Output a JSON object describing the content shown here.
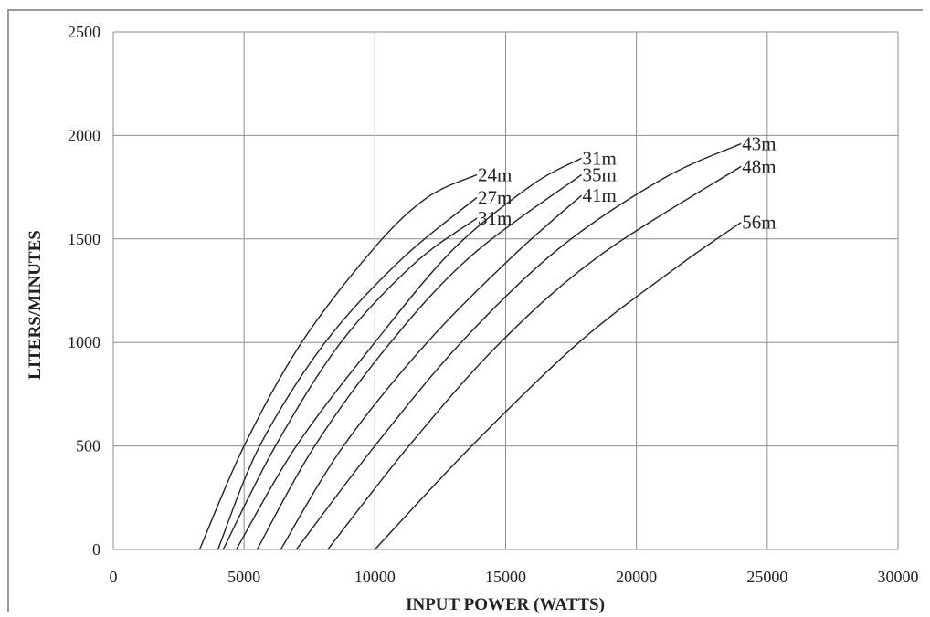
{
  "chart_data": {
    "type": "line",
    "title": "",
    "xlabel": "INPUT POWER (WATTS)",
    "ylabel": "LITERS/MINUTES",
    "xlim": [
      0,
      30000
    ],
    "ylim": [
      0,
      2500
    ],
    "x_ticks": [
      0,
      5000,
      10000,
      15000,
      20000,
      25000,
      30000
    ],
    "y_ticks": [
      0,
      500,
      1000,
      1500,
      2000,
      2500
    ],
    "grid": true,
    "legend": "none",
    "series": [
      {
        "name": "24m",
        "points": [
          [
            3300,
            0
          ],
          [
            5000,
            500
          ],
          [
            7200,
            1000
          ],
          [
            10000,
            1460
          ],
          [
            12000,
            1700
          ],
          [
            13900,
            1810
          ]
        ]
      },
      {
        "name": "27m",
        "points": [
          [
            4000,
            0
          ],
          [
            5600,
            500
          ],
          [
            8100,
            1000
          ],
          [
            11000,
            1400
          ],
          [
            13900,
            1700
          ]
        ]
      },
      {
        "name": "31m",
        "points": [
          [
            4200,
            0
          ],
          [
            6200,
            500
          ],
          [
            8700,
            1000
          ],
          [
            11500,
            1380
          ],
          [
            13900,
            1600
          ]
        ]
      },
      {
        "name": "31m",
        "points": [
          [
            4700,
            0
          ],
          [
            7000,
            500
          ],
          [
            10000,
            1000
          ],
          [
            13000,
            1450
          ],
          [
            16000,
            1760
          ],
          [
            17900,
            1890
          ]
        ]
      },
      {
        "name": "35m",
        "points": [
          [
            5500,
            0
          ],
          [
            7700,
            500
          ],
          [
            10600,
            1000
          ],
          [
            13700,
            1420
          ],
          [
            17900,
            1810
          ]
        ]
      },
      {
        "name": "41m",
        "points": [
          [
            6400,
            0
          ],
          [
            8800,
            500
          ],
          [
            12000,
            1000
          ],
          [
            15300,
            1420
          ],
          [
            17900,
            1710
          ]
        ]
      },
      {
        "name": "43m",
        "points": [
          [
            7000,
            0
          ],
          [
            10000,
            500
          ],
          [
            13300,
            1000
          ],
          [
            17000,
            1450
          ],
          [
            21000,
            1790
          ],
          [
            24000,
            1960
          ]
        ]
      },
      {
        "name": "48m",
        "points": [
          [
            8200,
            0
          ],
          [
            11300,
            500
          ],
          [
            14800,
            1000
          ],
          [
            18600,
            1420
          ],
          [
            24000,
            1850
          ]
        ]
      },
      {
        "name": "56m",
        "points": [
          [
            10000,
            0
          ],
          [
            13700,
            500
          ],
          [
            17800,
            1000
          ],
          [
            21500,
            1360
          ],
          [
            24000,
            1580
          ]
        ]
      }
    ]
  }
}
